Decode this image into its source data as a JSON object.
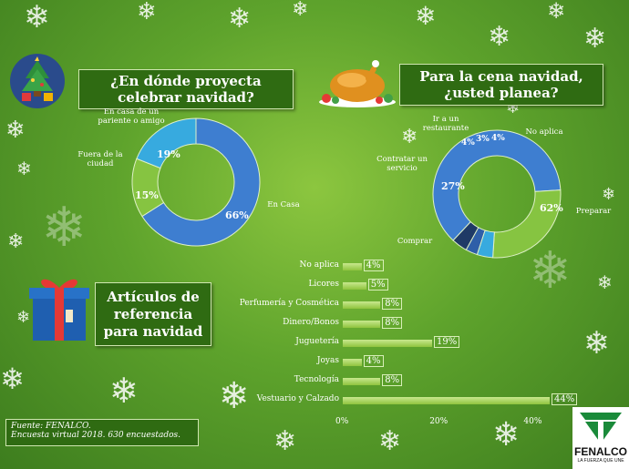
{
  "title_celebrate": "¿En dónde proyecta celebrar navidad?",
  "title_dinner": "Para la cena navidad, ¿usted planea?",
  "title_articles": "Artículos de referencia para navidad",
  "source_line1": "Fuente: FENALCO.",
  "source_line2": "Encuesta virtual 2018. 630 encuestados.",
  "logo_text": "FENALCO",
  "logo_tagline": "LA FUERZA QUE UNE",
  "chart_data": [
    {
      "type": "pie",
      "donut": true,
      "categories": [
        "En Casa",
        "Fuera de la ciudad",
        "En casa de un pariente o amigo"
      ],
      "values": [
        66,
        15,
        19
      ],
      "value_labels": [
        "66%",
        "15%",
        "19%"
      ],
      "colors": [
        "#3e7ed0",
        "#86c441",
        "#37aadf"
      ]
    },
    {
      "type": "pie",
      "donut": true,
      "categories": [
        "Preparar",
        "Comprar",
        "Contratar un servicio",
        "Ir a un restaurante",
        "No aplica"
      ],
      "values": [
        62,
        27,
        4,
        3,
        4
      ],
      "value_labels": [
        "62%",
        "27%",
        "4%",
        "3%",
        "4%"
      ],
      "colors": [
        "#3e7ed0",
        "#86c441",
        "#37aadf",
        "#2f5fa8",
        "#1f3a66"
      ]
    },
    {
      "type": "bar",
      "orientation": "horizontal",
      "categories": [
        "No aplica",
        "Licores",
        "Perfumería y Cosmética",
        "Dinero/Bonos",
        "Juguetería",
        "Joyas",
        "Tecnología",
        "Vestuario y Calzado"
      ],
      "values": [
        4,
        5,
        8,
        8,
        19,
        4,
        8,
        44
      ],
      "value_labels": [
        "4%",
        "5%",
        "8%",
        "8%",
        "19%",
        "4%",
        "8%",
        "44%"
      ],
      "xtick_labels": [
        "0%",
        "20%",
        "40%"
      ],
      "xlim": [
        0,
        50
      ]
    }
  ]
}
